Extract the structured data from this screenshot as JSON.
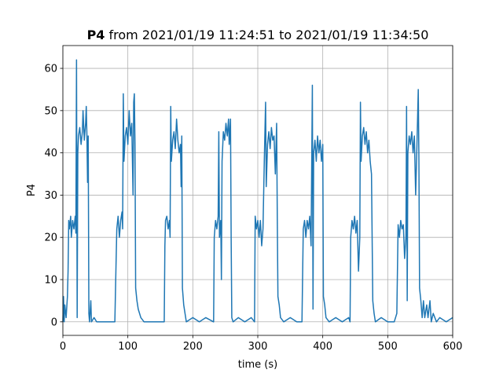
{
  "chart_data": {
    "type": "line",
    "title_bold": "P4",
    "title": "from 2021/01/19 11:24:51 to 2021/01/19 11:34:50",
    "xlabel": "time (s)",
    "ylabel": "P4",
    "xlim": [
      0,
      600
    ],
    "ylim": [
      -3.2,
      65.4
    ],
    "xticks": [
      0,
      100,
      200,
      300,
      400,
      500,
      600
    ],
    "yticks": [
      0,
      10,
      20,
      30,
      40,
      50,
      60
    ],
    "grid": true,
    "color": "#1f77b4",
    "x": [
      0,
      1,
      2,
      3,
      5,
      7,
      8,
      9,
      10,
      12,
      13,
      15,
      17,
      19,
      20,
      21,
      22,
      23,
      24,
      26,
      28,
      30,
      31,
      33,
      35,
      36,
      37,
      38,
      39,
      40,
      41,
      43,
      44,
      48,
      52,
      60,
      70,
      80,
      82,
      83,
      85,
      87,
      89,
      91,
      92,
      93,
      94,
      96,
      98,
      100,
      102,
      104,
      106,
      108,
      109,
      110,
      111,
      112,
      114,
      116,
      118,
      120,
      125,
      140,
      150,
      156,
      157,
      158,
      160,
      162,
      164,
      165,
      166,
      167,
      169,
      171,
      173,
      175,
      177,
      179,
      181,
      182,
      183,
      184,
      186,
      188,
      190,
      200,
      210,
      220,
      232,
      233,
      235,
      237,
      239,
      240,
      241,
      243,
      244,
      245,
      247,
      249,
      251,
      253,
      255,
      256,
      258,
      259,
      260,
      262,
      270,
      280,
      290,
      295,
      296,
      298,
      300,
      302,
      304,
      306,
      308,
      310,
      312,
      313,
      315,
      317,
      319,
      321,
      323,
      325,
      327,
      329,
      330,
      331,
      333,
      335,
      340,
      350,
      360,
      368,
      370,
      372,
      374,
      376,
      378,
      380,
      382,
      384,
      385,
      386,
      388,
      390,
      392,
      394,
      396,
      398,
      400,
      401,
      403,
      405,
      410,
      420,
      430,
      440,
      442,
      443,
      445,
      447,
      449,
      451,
      453,
      455,
      457,
      458,
      459,
      461,
      463,
      465,
      467,
      469,
      471,
      473,
      475,
      477,
      479,
      481,
      490,
      500,
      510,
      514,
      516,
      518,
      520,
      522,
      524,
      526,
      528,
      529,
      530,
      531,
      533,
      535,
      537,
      539,
      541,
      543,
      545,
      547,
      548,
      549,
      551,
      553,
      555,
      557,
      560,
      562,
      565,
      567,
      570,
      575,
      580,
      590,
      600
    ],
    "values": [
      0,
      6,
      0,
      4,
      1,
      6,
      12,
      24,
      22,
      25,
      20,
      24,
      22,
      25,
      21,
      62,
      1,
      40,
      44,
      46,
      42,
      45,
      50,
      43,
      47,
      51,
      44,
      33,
      44,
      2,
      0,
      5,
      0,
      1,
      0,
      0,
      0,
      0,
      15,
      22,
      25,
      20,
      24,
      26,
      22,
      54,
      38,
      44,
      46,
      42,
      50,
      44,
      47,
      30,
      52,
      54,
      42,
      8,
      5,
      3,
      2,
      1,
      0,
      0,
      0,
      0,
      18,
      24,
      25,
      22,
      24,
      20,
      51,
      38,
      43,
      45,
      41,
      48,
      43,
      40,
      42,
      32,
      44,
      8,
      4,
      2,
      0,
      1,
      0,
      1,
      0,
      20,
      24,
      22,
      25,
      45,
      20,
      24,
      10,
      38,
      45,
      43,
      47,
      44,
      48,
      42,
      48,
      20,
      1,
      0,
      1,
      0,
      1,
      0,
      25,
      22,
      24,
      20,
      24,
      18,
      22,
      38,
      52,
      32,
      42,
      45,
      41,
      46,
      43,
      44,
      35,
      47,
      25,
      6,
      4,
      1,
      0,
      1,
      0,
      0,
      22,
      24,
      20,
      24,
      22,
      25,
      18,
      56,
      3,
      40,
      43,
      38,
      44,
      40,
      43,
      38,
      42,
      6,
      4,
      1,
      0,
      1,
      0,
      1,
      0,
      20,
      24,
      22,
      25,
      21,
      24,
      12,
      20,
      52,
      38,
      44,
      46,
      42,
      45,
      40,
      43,
      38,
      35,
      5,
      2,
      0,
      1,
      0,
      0,
      2,
      23,
      20,
      24,
      22,
      23,
      15,
      20,
      51,
      5,
      40,
      44,
      42,
      45,
      40,
      44,
      30,
      42,
      55,
      38,
      8,
      5,
      1,
      5,
      1,
      4,
      1,
      5,
      0,
      2,
      0,
      1,
      0,
      1
    ]
  }
}
